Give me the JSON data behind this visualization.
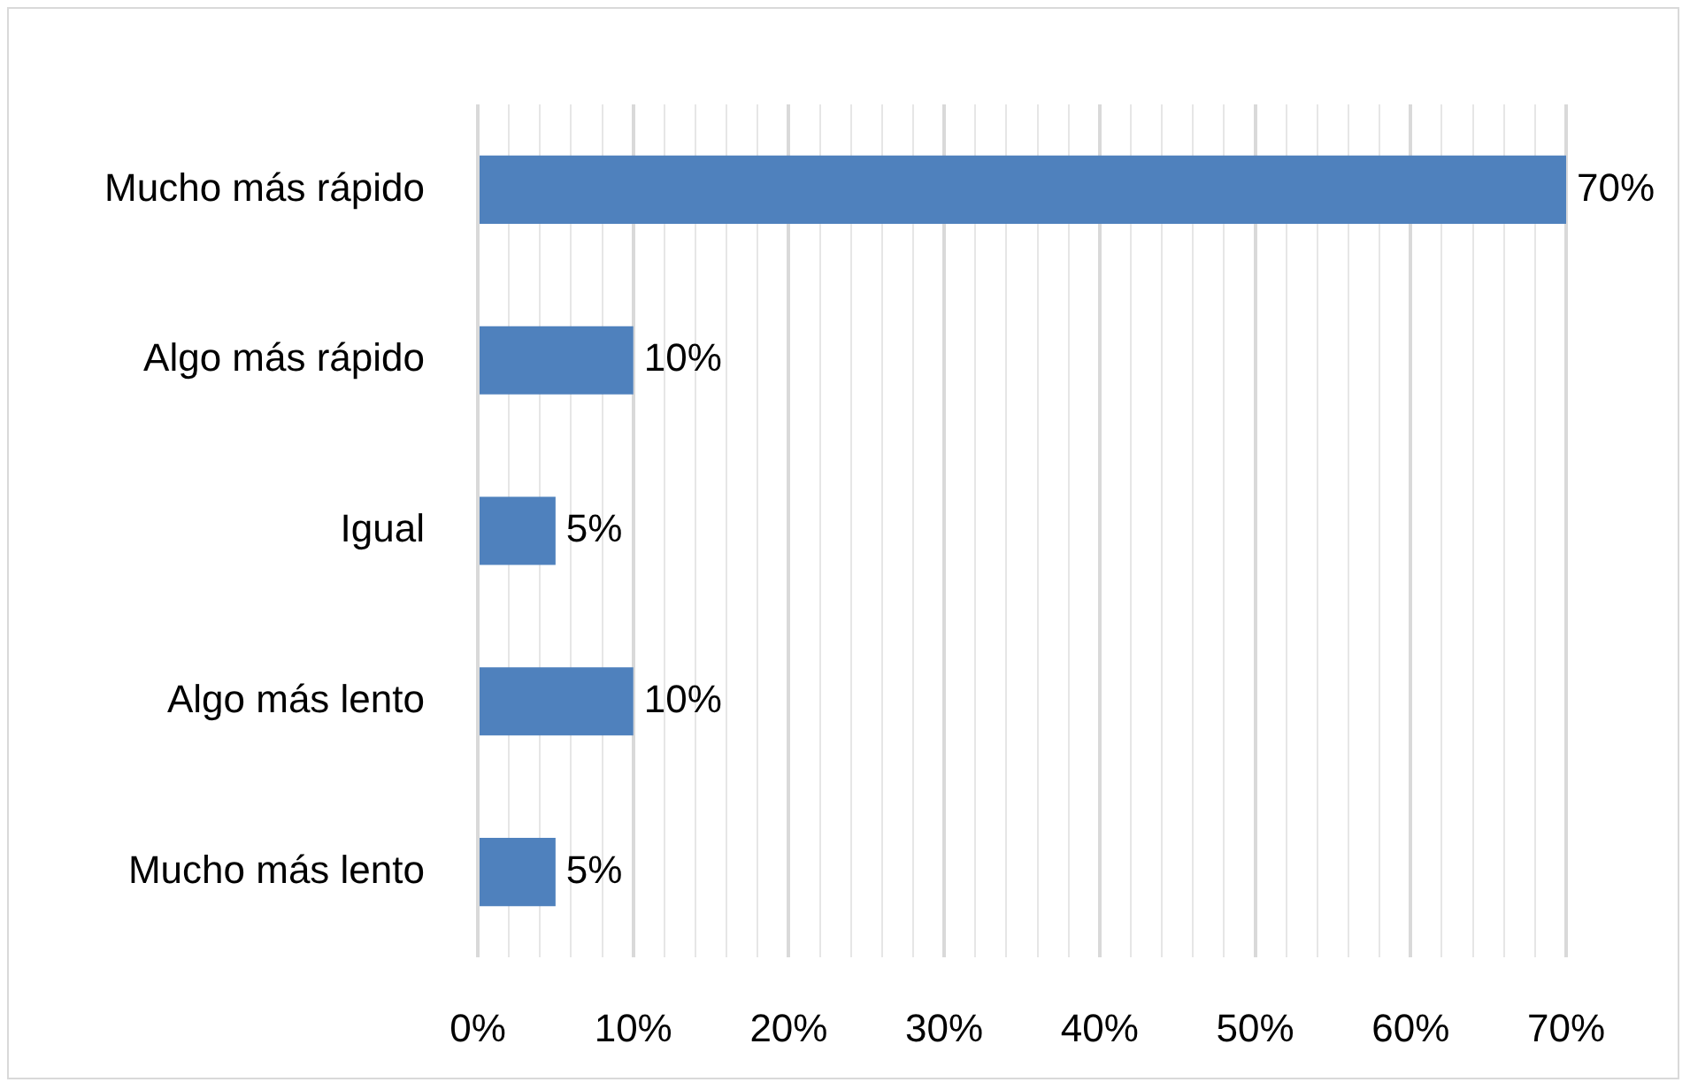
{
  "chart_data": {
    "type": "bar",
    "orientation": "horizontal",
    "categories": [
      "Mucho más rápido",
      "Algo más rápido",
      "Igual",
      "Algo más lento",
      "Mucho más lento"
    ],
    "values": [
      70,
      10,
      5,
      10,
      5
    ],
    "value_labels": [
      "70%",
      "10%",
      "5%",
      "10%",
      "5%"
    ],
    "color": "#4f81bd",
    "xlim": [
      0,
      70
    ],
    "xticks": [
      {
        "value": 0,
        "label": "0%"
      },
      {
        "value": 2,
        "label": null
      },
      {
        "value": 4,
        "label": null
      },
      {
        "value": 6,
        "label": null
      },
      {
        "value": 8,
        "label": null
      },
      {
        "value": 10,
        "label": "10%"
      },
      {
        "value": 12,
        "label": null
      },
      {
        "value": 14,
        "label": null
      },
      {
        "value": 16,
        "label": null
      },
      {
        "value": 18,
        "label": null
      },
      {
        "value": 20,
        "label": "20%"
      },
      {
        "value": 22,
        "label": null
      },
      {
        "value": 24,
        "label": null
      },
      {
        "value": 26,
        "label": null
      },
      {
        "value": 28,
        "label": null
      },
      {
        "value": 30,
        "label": "30%"
      },
      {
        "value": 32,
        "label": null
      },
      {
        "value": 34,
        "label": null
      },
      {
        "value": 36,
        "label": null
      },
      {
        "value": 38,
        "label": null
      },
      {
        "value": 40,
        "label": "40%"
      },
      {
        "value": 42,
        "label": null
      },
      {
        "value": 44,
        "label": null
      },
      {
        "value": 46,
        "label": null
      },
      {
        "value": 48,
        "label": null
      },
      {
        "value": 50,
        "label": "50%"
      },
      {
        "value": 52,
        "label": null
      },
      {
        "value": 54,
        "label": null
      },
      {
        "value": 56,
        "label": null
      },
      {
        "value": 58,
        "label": null
      },
      {
        "value": 60,
        "label": "60%"
      },
      {
        "value": 62,
        "label": null
      },
      {
        "value": 64,
        "label": null
      },
      {
        "value": 66,
        "label": null
      },
      {
        "value": 68,
        "label": null
      },
      {
        "value": 70,
        "label": "70%"
      }
    ],
    "grid": "x"
  }
}
